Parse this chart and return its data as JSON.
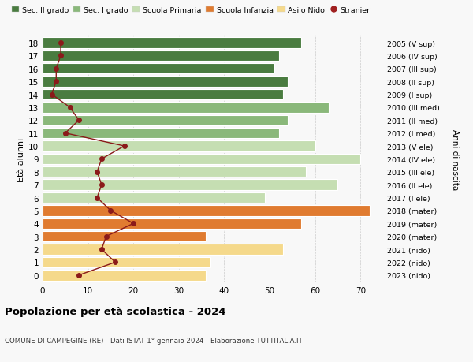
{
  "ages": [
    18,
    17,
    16,
    15,
    14,
    13,
    12,
    11,
    10,
    9,
    8,
    7,
    6,
    5,
    4,
    3,
    2,
    1,
    0
  ],
  "years": [
    "2005 (V sup)",
    "2006 (IV sup)",
    "2007 (III sup)",
    "2008 (II sup)",
    "2009 (I sup)",
    "2010 (III med)",
    "2011 (II med)",
    "2012 (I med)",
    "2013 (V ele)",
    "2014 (IV ele)",
    "2015 (III ele)",
    "2016 (II ele)",
    "2017 (I ele)",
    "2018 (mater)",
    "2019 (mater)",
    "2020 (mater)",
    "2021 (nido)",
    "2022 (nido)",
    "2023 (nido)"
  ],
  "bar_values": [
    57,
    52,
    51,
    54,
    53,
    63,
    54,
    52,
    60,
    70,
    58,
    65,
    49,
    72,
    57,
    36,
    53,
    37,
    36
  ],
  "bar_colors": [
    "#4a7c40",
    "#4a7c40",
    "#4a7c40",
    "#4a7c40",
    "#4a7c40",
    "#8ab87a",
    "#8ab87a",
    "#8ab87a",
    "#c5deb2",
    "#c5deb2",
    "#c5deb2",
    "#c5deb2",
    "#c5deb2",
    "#e07b30",
    "#e07b30",
    "#e07b30",
    "#f5d98b",
    "#f5d98b",
    "#f5d98b"
  ],
  "stranieri_values": [
    4,
    4,
    3,
    3,
    2,
    6,
    8,
    5,
    18,
    13,
    12,
    13,
    12,
    15,
    20,
    14,
    13,
    16,
    8
  ],
  "title": "Popolazione per età scolastica - 2024",
  "subtitle": "COMUNE DI CAMPEGINE (RE) - Dati ISTAT 1° gennaio 2024 - Elaborazione TUTTITALIA.IT",
  "ylabel": "Età alunni",
  "right_ylabel": "Anni di nascita",
  "xlim": [
    0,
    75
  ],
  "xticks": [
    0,
    10,
    20,
    30,
    40,
    50,
    60,
    70
  ],
  "legend_labels": [
    "Sec. II grado",
    "Sec. I grado",
    "Scuola Primaria",
    "Scuola Infanzia",
    "Asilo Nido",
    "Stranieri"
  ],
  "legend_colors": [
    "#4a7c40",
    "#8ab87a",
    "#c5deb2",
    "#e07b30",
    "#f5d98b",
    "#a02020"
  ],
  "background_color": "#f8f8f8",
  "stranieri_line_color": "#8b1a1a",
  "grid_color": "#cccccc",
  "bar_height": 0.82
}
